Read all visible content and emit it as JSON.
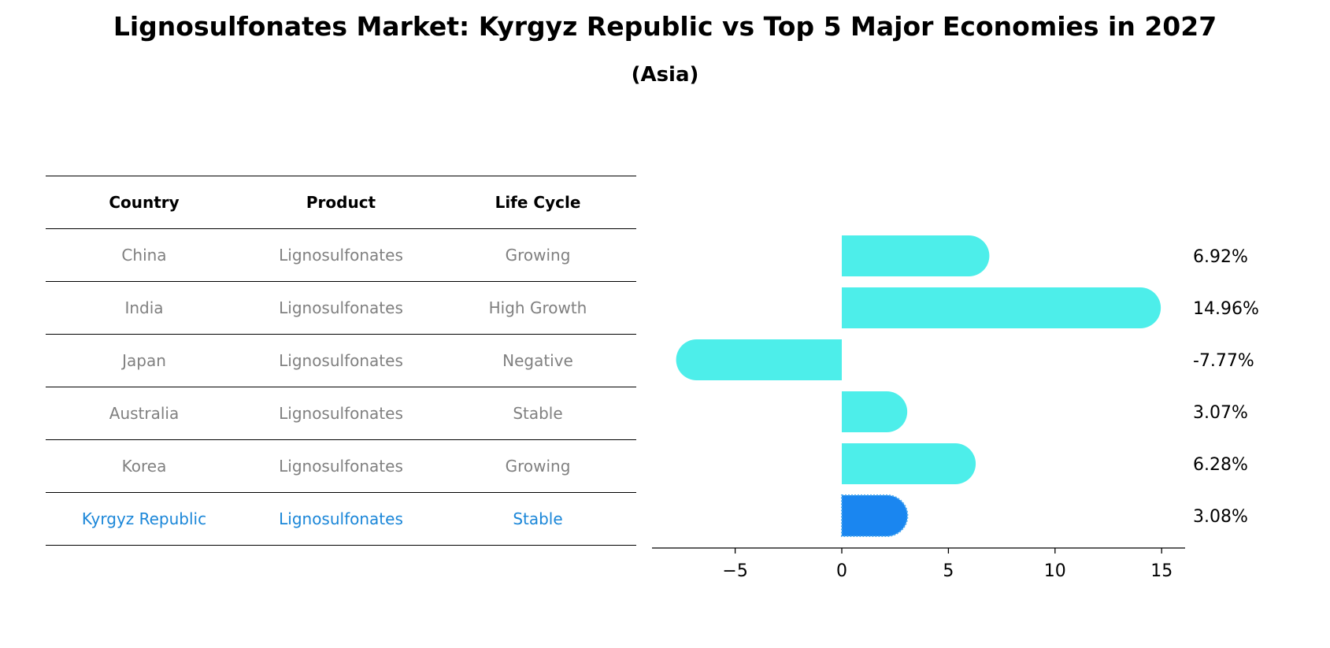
{
  "title": "Lignosulfonates Market: Kyrgyz Republic vs Top 5 Major Economies in 2027",
  "subtitle": "(Asia)",
  "table": {
    "headers": [
      "Country",
      "Product",
      "Life Cycle"
    ],
    "rows": [
      {
        "country": "China",
        "product": "Lignosulfonates",
        "life_cycle": "Growing"
      },
      {
        "country": "India",
        "product": "Lignosulfonates",
        "life_cycle": "High Growth"
      },
      {
        "country": "Japan",
        "product": "Lignosulfonates",
        "life_cycle": "Negative"
      },
      {
        "country": "Australia",
        "product": "Lignosulfonates",
        "life_cycle": "Stable"
      },
      {
        "country": "Korea",
        "product": "Lignosulfonates",
        "life_cycle": "Growing"
      },
      {
        "country": "Kyrgyz Republic",
        "product": "Lignosulfonates",
        "life_cycle": "Stable"
      }
    ]
  },
  "chart_data": {
    "type": "bar",
    "orientation": "horizontal",
    "categories": [
      "China",
      "India",
      "Japan",
      "Australia",
      "Korea",
      "Kyrgyz Republic"
    ],
    "values": [
      6.92,
      14.96,
      -7.77,
      3.07,
      6.28,
      3.08
    ],
    "value_labels": [
      "6.92%",
      "14.96%",
      "-7.77%",
      "3.07%",
      "6.28%",
      "3.08%"
    ],
    "xlim": [
      -8.9,
      16.1
    ],
    "xticks": [
      -5,
      0,
      5,
      10,
      15
    ],
    "xtick_labels": [
      "−5",
      "0",
      "5",
      "10",
      "15"
    ],
    "grid": false,
    "colors": {
      "default": "#4deeea",
      "highlight": "#1a86f0",
      "highlight_edge": "#4aa8f0"
    },
    "highlight_category": "Kyrgyz Republic"
  },
  "colors": {
    "highlight_text": "#1a86d8",
    "muted_text": "#808080"
  }
}
